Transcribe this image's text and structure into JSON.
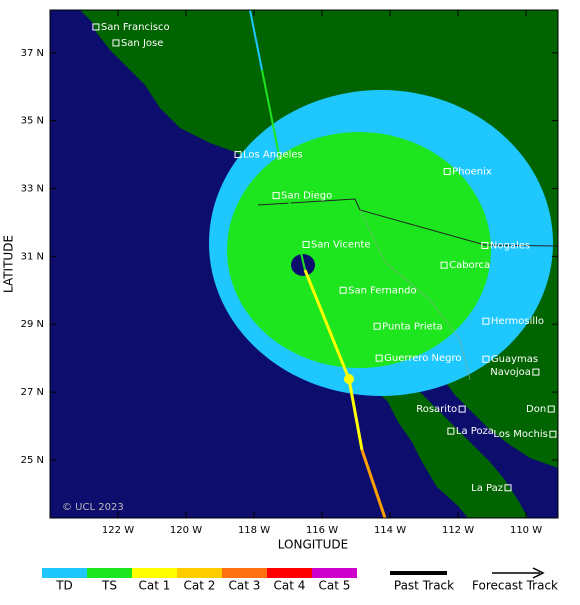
{
  "chart_data": {
    "type": "map",
    "x_label": "LONGITUDE",
    "y_label": "LATITUDE",
    "copyright": "© UCL 2023",
    "xlim": [
      -124,
      -109.06
    ],
    "ylim": [
      23.29,
      38.26
    ],
    "xticks": [
      {
        "value": -122,
        "label": "122 W"
      },
      {
        "value": -120,
        "label": "120 W"
      },
      {
        "value": -118,
        "label": "118 W"
      },
      {
        "value": -116,
        "label": "116 W"
      },
      {
        "value": -114,
        "label": "114 W"
      },
      {
        "value": -112,
        "label": "112 W"
      },
      {
        "value": -110,
        "label": "110 W"
      }
    ],
    "yticks": [
      {
        "value": 25,
        "label": "25 N"
      },
      {
        "value": 27,
        "label": "27 N"
      },
      {
        "value": 29,
        "label": "29 N"
      },
      {
        "value": 31,
        "label": "31 N"
      },
      {
        "value": 33,
        "label": "33 N"
      },
      {
        "value": 35,
        "label": "35 N"
      },
      {
        "value": 37,
        "label": "37 N"
      }
    ],
    "cities": [
      {
        "name": "San Francisco",
        "lon": -122.65,
        "lat": 37.76
      },
      {
        "name": "San Jose",
        "lon": -122.06,
        "lat": 37.29
      },
      {
        "name": "Los Angeles",
        "lon": -118.47,
        "lat": 34.0
      },
      {
        "name": "San Diego",
        "lon": -117.35,
        "lat": 32.79
      },
      {
        "name": "Phoenix",
        "lon": -112.32,
        "lat": 33.5
      },
      {
        "name": "San Vicente",
        "lon": -116.47,
        "lat": 31.35
      },
      {
        "name": "Nogales",
        "lon": -111.21,
        "lat": 31.32
      },
      {
        "name": "Caborca",
        "lon": -112.41,
        "lat": 30.74
      },
      {
        "name": "San Fernando",
        "lon": -115.38,
        "lat": 30.0
      },
      {
        "name": "Punta Prieta",
        "lon": -114.38,
        "lat": 28.94
      },
      {
        "name": "Hermosillo",
        "lon": -111.18,
        "lat": 29.09
      },
      {
        "name": "Guerrero Negro",
        "lon": -114.32,
        "lat": 28.0
      },
      {
        "name": "Guaymas",
        "lon": -111.18,
        "lat": 27.97
      },
      {
        "name": "Navojoa",
        "lon": -109.71,
        "lat": 27.59
      },
      {
        "name": "Rosarito",
        "lon": -111.88,
        "lat": 26.5
      },
      {
        "name": "Don",
        "lon": -109.26,
        "lat": 26.5
      },
      {
        "name": "La Poza",
        "lon": -112.21,
        "lat": 25.85
      },
      {
        "name": "Los Mochis",
        "lon": -109.21,
        "lat": 25.76
      },
      {
        "name": "La Paz",
        "lon": -110.53,
        "lat": 24.18
      }
    ],
    "intensity_legend": [
      {
        "name": "TD",
        "color": "#1ec8ff"
      },
      {
        "name": "TS",
        "color": "#1ee61e"
      },
      {
        "name": "Cat 1",
        "color": "#ffff00"
      },
      {
        "name": "Cat 2",
        "color": "#ffcc00"
      },
      {
        "name": "Cat 3",
        "color": "#ff7010"
      },
      {
        "name": "Cat 4",
        "color": "#ff0000"
      },
      {
        "name": "Cat 5",
        "color": "#cc00cc"
      }
    ],
    "track_legend": [
      "Past Track",
      "Forecast Track"
    ]
  }
}
